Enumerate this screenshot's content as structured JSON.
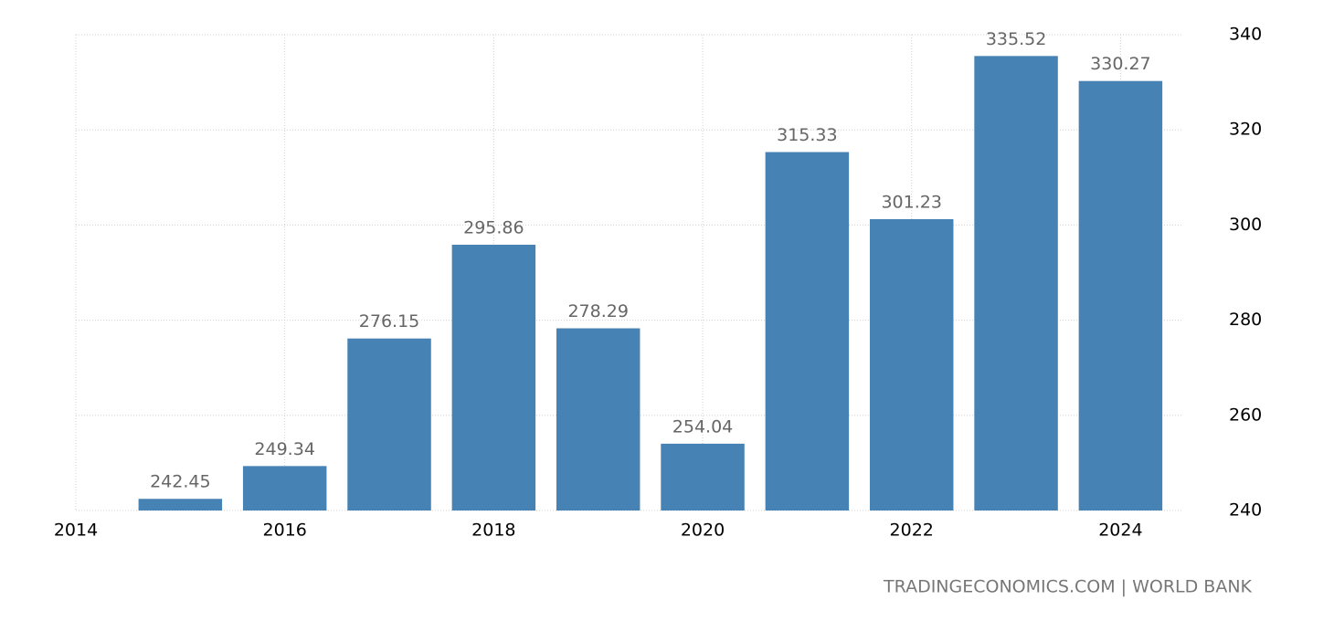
{
  "chart_data": {
    "type": "bar",
    "x": [
      2015,
      2016,
      2017,
      2018,
      2019,
      2020,
      2021,
      2022,
      2023,
      2024
    ],
    "values": [
      242.45,
      249.34,
      276.15,
      295.86,
      278.29,
      254.04,
      315.33,
      301.23,
      335.52,
      330.27
    ],
    "color": "#4682b4",
    "xlim": [
      2014,
      2024.6
    ],
    "xticks": [
      2014,
      2016,
      2018,
      2020,
      2022,
      2024
    ],
    "ylim": [
      240,
      340
    ],
    "yticks": [
      240,
      260,
      280,
      300,
      320,
      340
    ],
    "grid": true,
    "source": "TRADINGECONOMICS.COM | WORLD BANK"
  }
}
